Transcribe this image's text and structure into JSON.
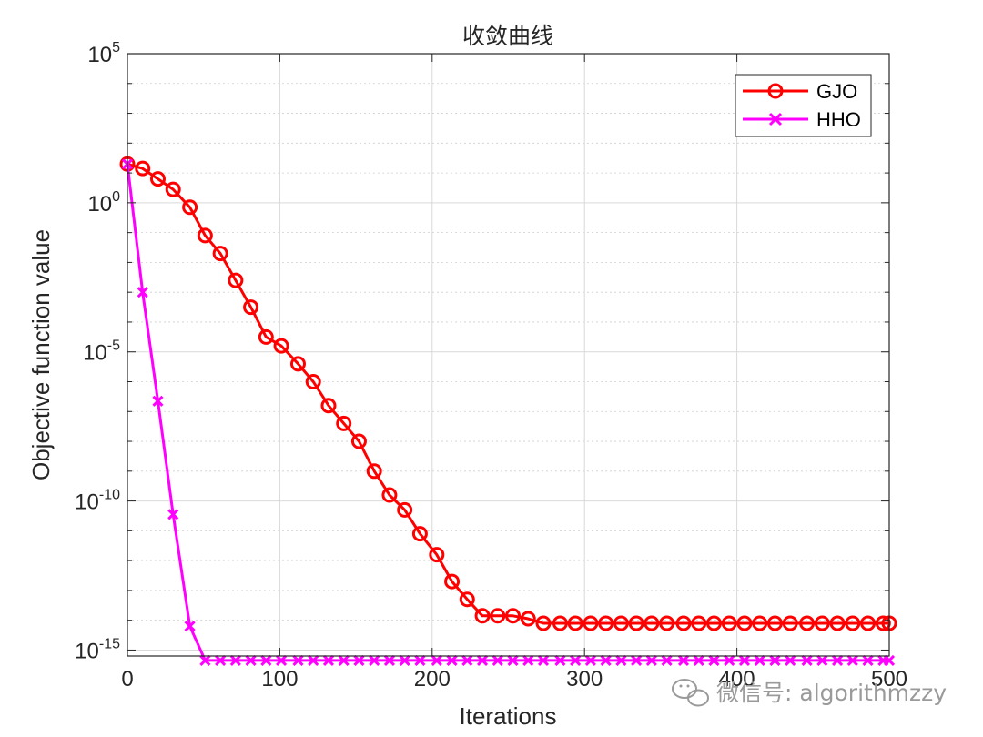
{
  "chart_data": {
    "type": "line",
    "title": "收敛曲线",
    "xlabel": "Iterations",
    "ylabel": "Objective function value",
    "xlim": [
      0,
      500
    ],
    "ylim_log10": [
      -15.2,
      5
    ],
    "yscale": "log",
    "grid": true,
    "minor_grid": true,
    "legend_position": "top-right",
    "x_ticks": [
      "0",
      "100",
      "200",
      "300",
      "400",
      "500"
    ],
    "y_ticks": [
      {
        "base": "10",
        "exp": "5",
        "log10": 5
      },
      {
        "base": "10",
        "exp": "0",
        "log10": 0
      },
      {
        "base": "10",
        "exp": "-5",
        "log10": -5
      },
      {
        "base": "10",
        "exp": "-10",
        "log10": -10
      },
      {
        "base": "10",
        "exp": "-15",
        "log10": -15
      }
    ],
    "series": [
      {
        "name": "GJO",
        "color": "#ff0000",
        "marker": "circle",
        "x": [
          0,
          10,
          20,
          30,
          41,
          51,
          61,
          71,
          81,
          91,
          101,
          112,
          122,
          132,
          142,
          152,
          162,
          172,
          182,
          192,
          203,
          213,
          223,
          233,
          243,
          253,
          263,
          273,
          284,
          294,
          304,
          314,
          324,
          334,
          344,
          354,
          365,
          375,
          385,
          395,
          405,
          415,
          425,
          435,
          446,
          456,
          466,
          476,
          486,
          496,
          500
        ],
        "log10_values": [
          1.3,
          1.15,
          0.8,
          0.45,
          -0.15,
          -1.1,
          -1.7,
          -2.6,
          -3.5,
          -4.5,
          -4.8,
          -5.4,
          -6.0,
          -6.8,
          -7.4,
          -8.0,
          -9.0,
          -9.8,
          -10.3,
          -11.1,
          -11.8,
          -12.7,
          -13.3,
          -13.85,
          -13.85,
          -13.85,
          -13.95,
          -14.1,
          -14.1,
          -14.1,
          -14.1,
          -14.1,
          -14.1,
          -14.1,
          -14.1,
          -14.1,
          -14.1,
          -14.1,
          -14.1,
          -14.1,
          -14.1,
          -14.1,
          -14.1,
          -14.1,
          -14.1,
          -14.1,
          -14.1,
          -14.1,
          -14.1,
          -14.1,
          -14.1
        ]
      },
      {
        "name": "HHO",
        "color": "#ff00ff",
        "marker": "x",
        "x": [
          0,
          10,
          20,
          30,
          41,
          51,
          61,
          71,
          81,
          91,
          101,
          112,
          122,
          132,
          142,
          152,
          162,
          172,
          182,
          192,
          203,
          213,
          223,
          233,
          243,
          253,
          263,
          273,
          284,
          294,
          304,
          314,
          324,
          334,
          344,
          354,
          365,
          375,
          385,
          395,
          405,
          415,
          425,
          435,
          446,
          456,
          466,
          476,
          486,
          496,
          500
        ],
        "log10_values": [
          1.3,
          -3.0,
          -6.65,
          -10.45,
          -14.2,
          -15.35,
          -15.35,
          -15.35,
          -15.35,
          -15.35,
          -15.35,
          -15.35,
          -15.35,
          -15.35,
          -15.35,
          -15.35,
          -15.35,
          -15.35,
          -15.35,
          -15.35,
          -15.35,
          -15.35,
          -15.35,
          -15.35,
          -15.35,
          -15.35,
          -15.35,
          -15.35,
          -15.35,
          -15.35,
          -15.35,
          -15.35,
          -15.35,
          -15.35,
          -15.35,
          -15.35,
          -15.35,
          -15.35,
          -15.35,
          -15.35,
          -15.35,
          -15.35,
          -15.35,
          -15.35,
          -15.35,
          -15.35,
          -15.35,
          -15.35,
          -15.35,
          -15.35,
          -15.35
        ]
      }
    ]
  },
  "watermark": {
    "text": "微信号: algorithmzzy",
    "icon": "wechat-icon"
  }
}
